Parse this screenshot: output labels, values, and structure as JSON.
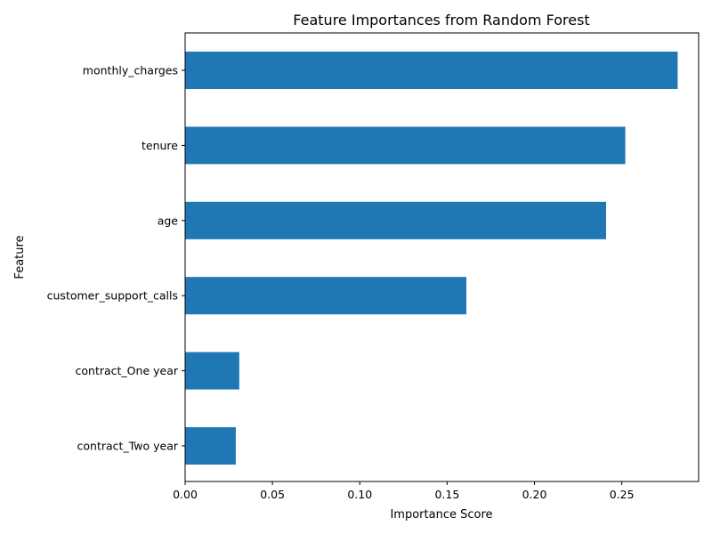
{
  "chart_data": {
    "type": "bar",
    "orientation": "horizontal",
    "title": "Feature Importances from Random Forest",
    "xlabel": "Importance Score",
    "ylabel": "Feature",
    "categories": [
      "monthly_charges",
      "tenure",
      "age",
      "customer_support_calls",
      "contract_One year",
      "contract_Two year"
    ],
    "values": [
      0.282,
      0.252,
      0.241,
      0.161,
      0.031,
      0.029
    ],
    "xlim": [
      0,
      0.294
    ],
    "xticks": [
      "0.00",
      "0.05",
      "0.10",
      "0.15",
      "0.20",
      "0.25"
    ],
    "xtick_values": [
      0,
      0.05,
      0.1,
      0.15,
      0.2,
      0.25
    ],
    "bar_color": "#1f77b4",
    "grid": false,
    "legend": false
  }
}
